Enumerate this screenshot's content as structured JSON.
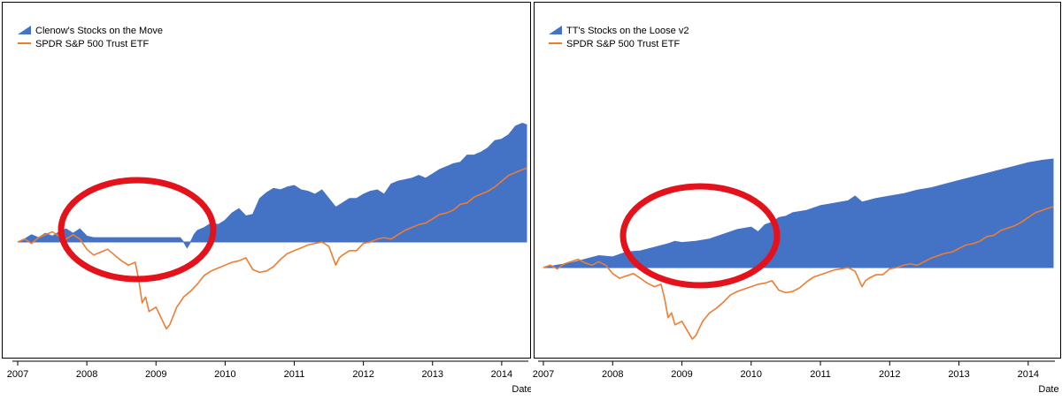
{
  "colors": {
    "strategy": "#4472c4",
    "benchmark": "#ed7d31",
    "highlight": "#e4131b",
    "axis": "#000000",
    "frame": "#000000"
  },
  "chart_data": [
    {
      "type": "area",
      "title": "",
      "xlabel": "Date",
      "ylabel": "",
      "xlim": [
        2007.0,
        2014.36
      ],
      "ylim": [
        -0.75,
        1.0
      ],
      "grid": false,
      "legend_position": "top-left",
      "tick_labels": [
        "2007",
        "2008",
        "2009",
        "2010",
        "2011",
        "2012",
        "2013",
        "2014"
      ],
      "series": [
        {
          "name": "Clenow's Stocks on the Move",
          "kind": "area",
          "x": [
            2007.0,
            2007.1,
            2007.2,
            2007.3,
            2007.4,
            2007.5,
            2007.6,
            2007.7,
            2007.8,
            2007.9,
            2008.0,
            2008.1,
            2008.3,
            2008.6,
            2008.9,
            2009.2,
            2009.35,
            2009.4,
            2009.45,
            2009.5,
            2009.55,
            2009.6,
            2009.7,
            2009.8,
            2009.9,
            2010.0,
            2010.1,
            2010.2,
            2010.3,
            2010.4,
            2010.5,
            2010.6,
            2010.7,
            2010.8,
            2010.9,
            2011.0,
            2011.1,
            2011.2,
            2011.3,
            2011.4,
            2011.5,
            2011.6,
            2011.7,
            2011.8,
            2011.9,
            2012.0,
            2012.1,
            2012.2,
            2012.3,
            2012.4,
            2012.5,
            2012.6,
            2012.7,
            2012.8,
            2012.9,
            2013.0,
            2013.1,
            2013.2,
            2013.3,
            2013.4,
            2013.5,
            2013.6,
            2013.7,
            2013.8,
            2013.9,
            2014.0,
            2014.1,
            2014.2,
            2014.3,
            2014.36
          ],
          "values": [
            0.0,
            0.02,
            0.05,
            0.03,
            0.06,
            0.04,
            0.07,
            0.09,
            0.06,
            0.09,
            0.04,
            0.03,
            0.03,
            0.03,
            0.03,
            0.03,
            0.03,
            0.0,
            -0.04,
            0.0,
            0.05,
            0.08,
            0.1,
            0.13,
            0.12,
            0.15,
            0.2,
            0.23,
            0.18,
            0.19,
            0.3,
            0.34,
            0.37,
            0.36,
            0.38,
            0.39,
            0.36,
            0.35,
            0.33,
            0.36,
            0.3,
            0.24,
            0.27,
            0.3,
            0.3,
            0.33,
            0.35,
            0.36,
            0.33,
            0.4,
            0.42,
            0.43,
            0.44,
            0.46,
            0.44,
            0.47,
            0.5,
            0.52,
            0.54,
            0.55,
            0.6,
            0.6,
            0.62,
            0.65,
            0.7,
            0.71,
            0.74,
            0.8,
            0.82,
            0.81
          ]
        },
        {
          "name": "SPDR S&P 500 Trust ETF",
          "kind": "line",
          "x": [
            2007.0,
            2007.1,
            2007.2,
            2007.3,
            2007.4,
            2007.5,
            2007.6,
            2007.7,
            2007.8,
            2007.9,
            2008.0,
            2008.1,
            2008.2,
            2008.3,
            2008.4,
            2008.5,
            2008.6,
            2008.7,
            2008.75,
            2008.8,
            2008.85,
            2008.9,
            2009.0,
            2009.1,
            2009.15,
            2009.2,
            2009.3,
            2009.4,
            2009.5,
            2009.6,
            2009.7,
            2009.8,
            2009.9,
            2010.0,
            2010.1,
            2010.2,
            2010.3,
            2010.4,
            2010.5,
            2010.6,
            2010.7,
            2010.8,
            2010.9,
            2011.0,
            2011.1,
            2011.2,
            2011.3,
            2011.4,
            2011.5,
            2011.6,
            2011.65,
            2011.7,
            2011.8,
            2011.9,
            2012.0,
            2012.1,
            2012.2,
            2012.3,
            2012.4,
            2012.5,
            2012.6,
            2012.7,
            2012.8,
            2012.9,
            2013.0,
            2013.1,
            2013.2,
            2013.3,
            2013.4,
            2013.5,
            2013.6,
            2013.7,
            2013.8,
            2013.9,
            2014.0,
            2014.1,
            2014.2,
            2014.3,
            2014.36
          ],
          "values": [
            0.0,
            0.02,
            -0.01,
            0.03,
            0.05,
            0.07,
            0.04,
            0.02,
            0.05,
            0.02,
            -0.05,
            -0.09,
            -0.07,
            -0.05,
            -0.09,
            -0.13,
            -0.16,
            -0.14,
            -0.26,
            -0.42,
            -0.38,
            -0.48,
            -0.45,
            -0.55,
            -0.6,
            -0.57,
            -0.45,
            -0.38,
            -0.34,
            -0.29,
            -0.23,
            -0.2,
            -0.18,
            -0.16,
            -0.14,
            -0.13,
            -0.11,
            -0.19,
            -0.21,
            -0.2,
            -0.17,
            -0.12,
            -0.08,
            -0.06,
            -0.04,
            -0.02,
            -0.01,
            0.0,
            -0.03,
            -0.16,
            -0.11,
            -0.09,
            -0.06,
            -0.06,
            -0.01,
            0.0,
            0.02,
            0.03,
            0.02,
            0.05,
            0.08,
            0.1,
            0.12,
            0.13,
            0.16,
            0.19,
            0.2,
            0.22,
            0.26,
            0.27,
            0.31,
            0.33,
            0.35,
            0.38,
            0.42,
            0.46,
            0.48,
            0.5,
            0.51
          ]
        }
      ],
      "annotations": [
        {
          "type": "ellipse",
          "label": "",
          "cx": 2008.8,
          "cy": 0.0
        }
      ]
    },
    {
      "type": "area",
      "title": "",
      "xlabel": "Date",
      "ylabel": "",
      "xlim": [
        2007.0,
        2014.36
      ],
      "ylim": [
        -0.75,
        1.0
      ],
      "grid": false,
      "legend_position": "top-left",
      "tick_labels": [
        "2007",
        "2008",
        "2009",
        "2010",
        "2011",
        "2012",
        "2013",
        "2014"
      ],
      "series": [
        {
          "name": "TT's Stocks on the Loose v2",
          "kind": "area",
          "x": [
            2007.0,
            2007.2,
            2007.4,
            2007.6,
            2007.8,
            2008.0,
            2008.2,
            2008.4,
            2008.6,
            2008.8,
            2008.9,
            2009.0,
            2009.2,
            2009.4,
            2009.6,
            2009.8,
            2010.0,
            2010.1,
            2010.2,
            2010.3,
            2010.4,
            2010.5,
            2010.6,
            2010.8,
            2011.0,
            2011.2,
            2011.4,
            2011.5,
            2011.6,
            2011.8,
            2012.0,
            2012.2,
            2012.4,
            2012.6,
            2012.8,
            2013.0,
            2013.2,
            2013.4,
            2013.6,
            2013.8,
            2014.0,
            2014.2,
            2014.36
          ],
          "values": [
            0.0,
            0.02,
            0.04,
            0.07,
            0.1,
            0.09,
            0.13,
            0.14,
            0.17,
            0.2,
            0.22,
            0.21,
            0.22,
            0.24,
            0.28,
            0.32,
            0.34,
            0.3,
            0.36,
            0.38,
            0.42,
            0.43,
            0.46,
            0.48,
            0.52,
            0.54,
            0.56,
            0.6,
            0.55,
            0.58,
            0.6,
            0.62,
            0.65,
            0.67,
            0.7,
            0.73,
            0.76,
            0.79,
            0.82,
            0.85,
            0.88,
            0.9,
            0.91
          ]
        },
        {
          "name": "SPDR S&P 500 Trust ETF",
          "kind": "line",
          "x": [
            2007.0,
            2007.1,
            2007.2,
            2007.3,
            2007.4,
            2007.5,
            2007.6,
            2007.7,
            2007.8,
            2007.9,
            2008.0,
            2008.1,
            2008.2,
            2008.3,
            2008.4,
            2008.5,
            2008.6,
            2008.7,
            2008.75,
            2008.8,
            2008.85,
            2008.9,
            2009.0,
            2009.1,
            2009.15,
            2009.2,
            2009.3,
            2009.4,
            2009.5,
            2009.6,
            2009.7,
            2009.8,
            2009.9,
            2010.0,
            2010.1,
            2010.2,
            2010.3,
            2010.4,
            2010.5,
            2010.6,
            2010.7,
            2010.8,
            2010.9,
            2011.0,
            2011.1,
            2011.2,
            2011.3,
            2011.4,
            2011.5,
            2011.6,
            2011.65,
            2011.7,
            2011.8,
            2011.9,
            2012.0,
            2012.1,
            2012.2,
            2012.3,
            2012.4,
            2012.5,
            2012.6,
            2012.7,
            2012.8,
            2012.9,
            2013.0,
            2013.1,
            2013.2,
            2013.3,
            2013.4,
            2013.5,
            2013.6,
            2013.7,
            2013.8,
            2013.9,
            2014.0,
            2014.1,
            2014.2,
            2014.3,
            2014.36
          ],
          "values": [
            0.0,
            0.02,
            -0.01,
            0.03,
            0.05,
            0.07,
            0.04,
            0.02,
            0.05,
            0.02,
            -0.05,
            -0.09,
            -0.07,
            -0.05,
            -0.09,
            -0.13,
            -0.16,
            -0.14,
            -0.26,
            -0.42,
            -0.38,
            -0.48,
            -0.45,
            -0.55,
            -0.6,
            -0.57,
            -0.45,
            -0.38,
            -0.34,
            -0.29,
            -0.23,
            -0.2,
            -0.18,
            -0.16,
            -0.14,
            -0.13,
            -0.11,
            -0.19,
            -0.21,
            -0.2,
            -0.17,
            -0.12,
            -0.08,
            -0.06,
            -0.04,
            -0.02,
            -0.01,
            0.0,
            -0.03,
            -0.16,
            -0.11,
            -0.09,
            -0.06,
            -0.06,
            -0.01,
            0.0,
            0.02,
            0.03,
            0.02,
            0.05,
            0.08,
            0.1,
            0.12,
            0.13,
            0.16,
            0.19,
            0.2,
            0.22,
            0.26,
            0.27,
            0.31,
            0.33,
            0.35,
            0.38,
            0.42,
            0.46,
            0.48,
            0.5,
            0.51
          ]
        }
      ],
      "annotations": [
        {
          "type": "ellipse",
          "label": "",
          "cx": 2009.3,
          "cy": 0.3
        }
      ]
    }
  ]
}
